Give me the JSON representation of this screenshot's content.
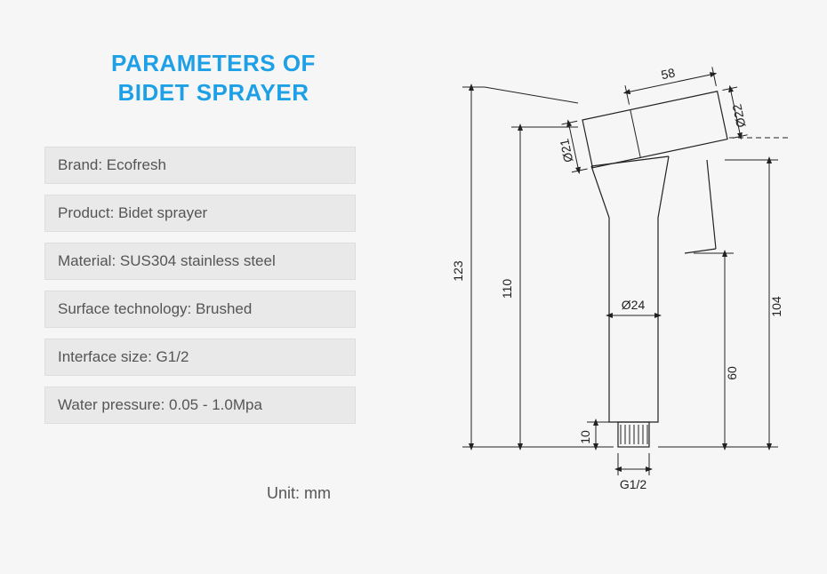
{
  "title": {
    "line1": "PARAMETERS OF",
    "line2": "BIDET SPRAYER",
    "color": "#1ea0e6",
    "fontsize": 26
  },
  "specs": [
    {
      "label": "Brand",
      "value": "Ecofresh"
    },
    {
      "label": "Product",
      "value": "Bidet sprayer"
    },
    {
      "label": "Material",
      "value": "SUS304 stainless steel"
    },
    {
      "label": "Surface technology",
      "value": "Brushed"
    },
    {
      "label": "Interface size",
      "value": "G1/2"
    },
    {
      "label": "Water pressure",
      "value": "0.05 - 1.0Mpa"
    }
  ],
  "unit_label": "Unit: mm",
  "diagram": {
    "type": "technical-drawing",
    "background_color": "#f6f6f6",
    "stroke_color": "#222222",
    "dim_font_size": 14,
    "dimensions": {
      "top_width_58": "58",
      "dia_21": "Ø21",
      "dia_22": "Ø22",
      "height_123": "123",
      "height_110": "110",
      "height_104": "104",
      "height_60": "60",
      "height_10": "10",
      "dia_24": "Ø24",
      "thread": "G1/2"
    }
  },
  "colors": {
    "page_bg": "#f6f6f6",
    "row_bg": "#e9e9e9",
    "row_border": "#dddddd",
    "text": "#555555",
    "title": "#1ea0e6",
    "stroke": "#222222"
  }
}
